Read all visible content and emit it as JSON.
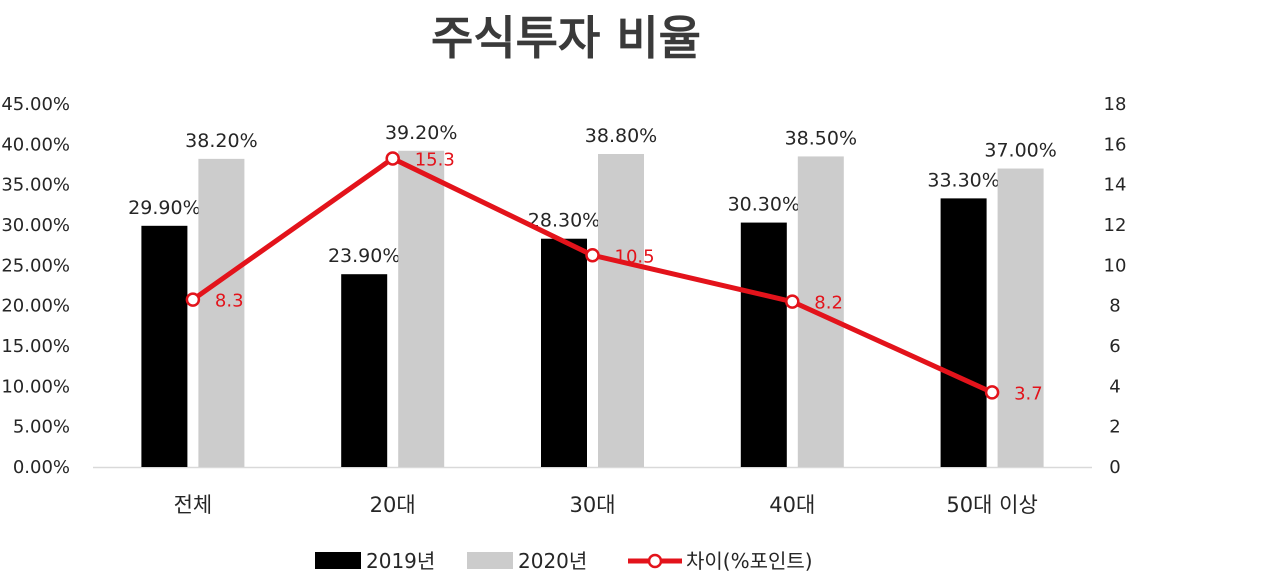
{
  "chart_data": {
    "type": "bar",
    "title": "주식투자 비율",
    "categories": [
      "전체",
      "20대",
      "30대",
      "40대",
      "50대 이상"
    ],
    "series": [
      {
        "name": "2019년",
        "type": "bar",
        "axis": "left",
        "color": "#000000",
        "values": [
          29.9,
          23.9,
          28.3,
          30.3,
          33.3
        ],
        "labels": [
          "29.90%",
          "23.90%",
          "28.30%",
          "30.30%",
          "33.30%"
        ]
      },
      {
        "name": "2020년",
        "type": "bar",
        "axis": "left",
        "color": "#cccccc",
        "values": [
          38.2,
          39.2,
          38.8,
          38.5,
          37.0
        ],
        "labels": [
          "38.20%",
          "39.20%",
          "38.80%",
          "38.50%",
          "37.00%"
        ]
      },
      {
        "name": "차이(%포인트)",
        "type": "line",
        "axis": "right",
        "color": "#e3131b",
        "values": [
          8.3,
          15.3,
          10.5,
          8.2,
          3.7
        ],
        "labels": [
          "8.3",
          "15.3",
          "10.5",
          "8.2",
          "3.7"
        ]
      }
    ],
    "y_left": {
      "min": 0,
      "max": 45,
      "ticks": [
        "0.00%",
        "5.00%",
        "10.00%",
        "15.00%",
        "20.00%",
        "25.00%",
        "30.00%",
        "35.00%",
        "40.00%",
        "45.00%"
      ]
    },
    "y_right": {
      "min": 0,
      "max": 18,
      "ticks": [
        "0",
        "2",
        "4",
        "6",
        "8",
        "10",
        "12",
        "14",
        "16",
        "18"
      ]
    },
    "grid": false,
    "legend": "bottom"
  }
}
